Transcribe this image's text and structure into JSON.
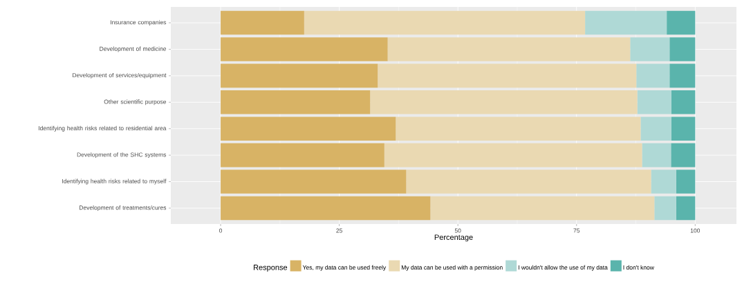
{
  "chart_data": {
    "type": "bar",
    "orientation": "horizontal",
    "stacked": true,
    "xlabel": "Percentage",
    "legend_title": "Response",
    "legend": "bottom",
    "grid": true,
    "categories": [
      "Insurance companies",
      "Development of medicine",
      "Development of services/equipment",
      "Other scientific purpose",
      "Identifying health risks related to residential area",
      "Development of the SHC systems",
      "Identifying health risks related to myself",
      "Development of treatments/cures"
    ],
    "xlim": [
      -10.5,
      108.7
    ],
    "xticks": [
      0,
      25,
      50,
      75,
      100
    ],
    "series": [
      {
        "name": "Yes, my data can be used freely",
        "color": "#d8b365",
        "values": [
          17.6,
          35.2,
          33.1,
          31.5,
          36.9,
          34.5,
          39.1,
          44.2
        ]
      },
      {
        "name": "My data can be used with a permission",
        "color": "#ead9b2",
        "values": [
          59.2,
          51.1,
          54.5,
          56.3,
          51.6,
          54.3,
          51.6,
          47.2
        ]
      },
      {
        "name": "I wouldn't allow the use of my data",
        "color": "#afd9d6",
        "values": [
          17.2,
          8.3,
          7.0,
          7.2,
          6.5,
          6.1,
          5.3,
          4.6
        ]
      },
      {
        "name": "I don't know",
        "color": "#5ab4ac",
        "values": [
          6.0,
          5.4,
          5.4,
          5.0,
          5.0,
          5.1,
          4.0,
          4.0
        ]
      }
    ]
  }
}
